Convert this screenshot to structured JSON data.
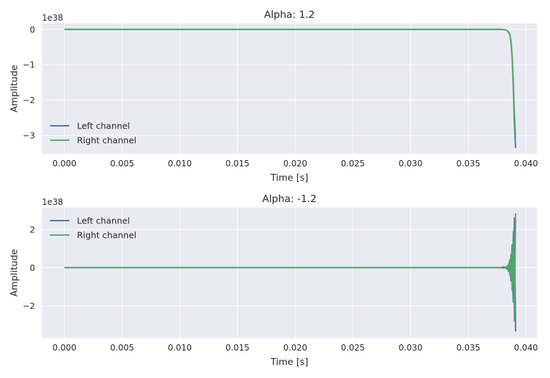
{
  "chart_data": [
    {
      "type": "line",
      "title": "Alpha: 1.2",
      "xlabel": "Time [s]",
      "ylabel": "Amplitude",
      "y_offset_label": "1e38",
      "xlim": [
        -0.00195,
        0.04095
      ],
      "ylim": [
        -3.52,
        0.17
      ],
      "xticks": [
        0.0,
        0.005,
        0.01,
        0.015,
        0.02,
        0.025,
        0.03,
        0.035,
        0.04
      ],
      "xtick_labels": [
        "0.000",
        "0.005",
        "0.010",
        "0.015",
        "0.020",
        "0.025",
        "0.030",
        "0.035",
        "0.040"
      ],
      "yticks": [
        0,
        -1,
        -2,
        -3
      ],
      "ytick_labels": [
        "0",
        "−1",
        "−2",
        "−3"
      ],
      "grid": true,
      "legend_position": "lower-left",
      "series": [
        {
          "name": "Left channel",
          "color": "#4c72b0",
          "x": [
            0.0,
            0.035,
            0.0378,
            0.0382,
            0.0384,
            0.0386,
            0.0387,
            0.0388,
            0.0389,
            0.039,
            0.0391
          ],
          "y": [
            0,
            0,
            0,
            -0.01,
            -0.04,
            -0.15,
            -0.35,
            -0.8,
            -1.6,
            -2.7,
            -3.35
          ]
        },
        {
          "name": "Right channel",
          "color": "#55a868",
          "x": [
            0.0,
            0.035,
            0.0378,
            0.0382,
            0.0384,
            0.0386,
            0.0387,
            0.0388,
            0.0389,
            0.039,
            0.0391
          ],
          "y": [
            0,
            0,
            0,
            -0.01,
            -0.04,
            -0.14,
            -0.32,
            -0.72,
            -1.45,
            -2.4,
            -3.05
          ]
        }
      ]
    },
    {
      "type": "line",
      "title": "Alpha: -1.2",
      "xlabel": "Time [s]",
      "ylabel": "Amplitude",
      "y_offset_label": "1e38",
      "xlim": [
        -0.00195,
        0.04095
      ],
      "ylim": [
        -3.7,
        3.15
      ],
      "xticks": [
        0.0,
        0.005,
        0.01,
        0.015,
        0.02,
        0.025,
        0.03,
        0.035,
        0.04
      ],
      "xtick_labels": [
        "0.000",
        "0.005",
        "0.010",
        "0.015",
        "0.020",
        "0.025",
        "0.030",
        "0.035",
        "0.040"
      ],
      "yticks": [
        2,
        0,
        -2
      ],
      "ytick_labels": [
        "2",
        "0",
        "−2"
      ],
      "grid": true,
      "legend_position": "upper-left",
      "series": [
        {
          "name": "Left channel",
          "color": "#4c72b0",
          "x": [
            0.0,
            0.0378,
            0.0381,
            0.0383,
            0.0384,
            0.0385,
            0.0386,
            0.0387,
            0.0388,
            0.0389,
            0.039,
            0.0391
          ],
          "y": [
            0,
            0,
            0.03,
            -0.05,
            0.1,
            -0.2,
            0.4,
            -0.7,
            1.2,
            -1.8,
            2.6,
            -3.35
          ]
        },
        {
          "name": "Right channel",
          "color": "#55a868",
          "x": [
            0.0,
            0.0378,
            0.0381,
            0.0383,
            0.0384,
            0.0385,
            0.0386,
            0.0387,
            0.0388,
            0.0389,
            0.039,
            0.0391
          ],
          "y": [
            0,
            0,
            -0.03,
            0.05,
            -0.1,
            0.2,
            -0.4,
            0.7,
            -1.2,
            1.9,
            -2.8,
            2.85
          ]
        }
      ]
    }
  ]
}
